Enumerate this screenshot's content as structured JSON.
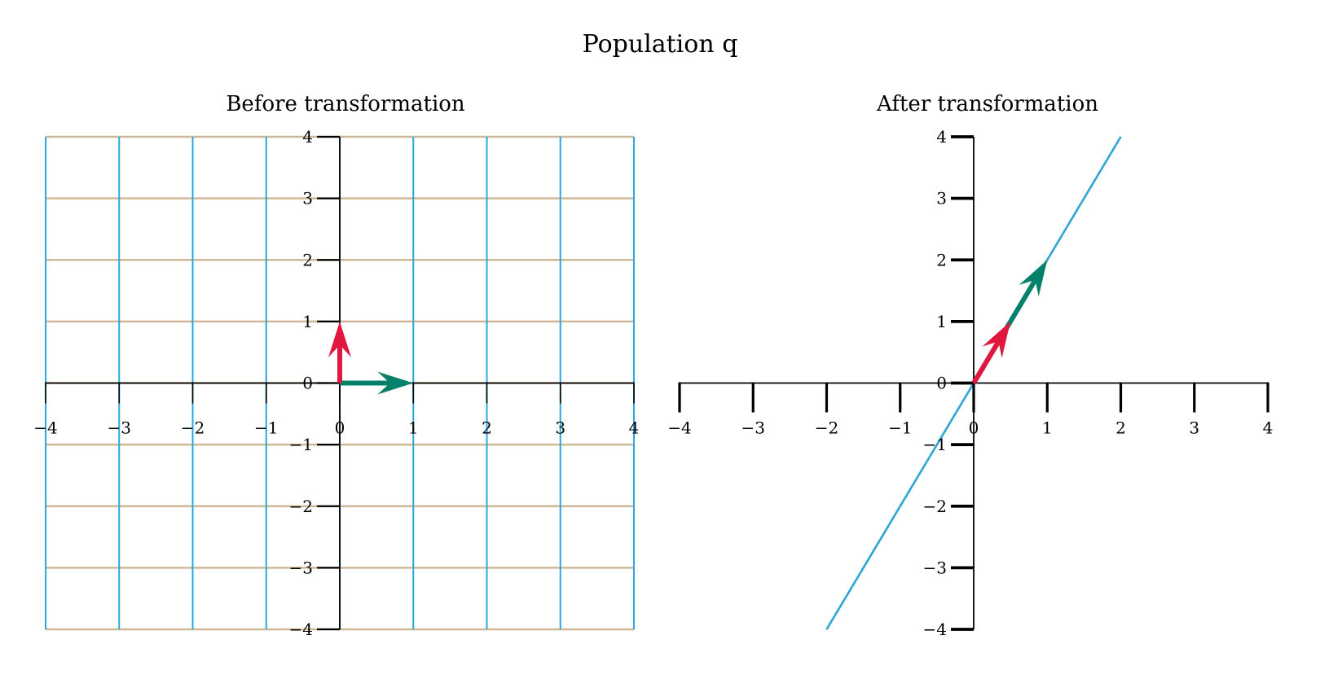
{
  "chart_data": {
    "title": "Population q",
    "type": "line",
    "colors": {
      "vertical_grid": "#29a8e0",
      "horizontal_grid": "#cfb897",
      "basis_i": "#05806a",
      "basis_j": "#e0173e",
      "axis": "#000000"
    },
    "panels": [
      {
        "title": "Before transformation",
        "xlim": [
          -4,
          4
        ],
        "ylim": [
          -4,
          4
        ],
        "xticks": [
          "−4",
          "−3",
          "−2",
          "−1",
          "0",
          "1",
          "2",
          "3",
          "4"
        ],
        "yticks": [
          "−4",
          "−3",
          "−2",
          "−1",
          "0",
          "1",
          "2",
          "3",
          "4"
        ],
        "matrix": [
          [
            1,
            0
          ],
          [
            0,
            1
          ]
        ],
        "vectors": [
          {
            "name": "i-hat",
            "x": 1,
            "y": 0
          },
          {
            "name": "j-hat",
            "x": 0,
            "y": 1
          }
        ]
      },
      {
        "title": "After transformation",
        "xlim": [
          -4,
          4
        ],
        "ylim": [
          -4,
          4
        ],
        "xticks": [
          "−4",
          "−3",
          "−2",
          "−1",
          "0",
          "1",
          "2",
          "3",
          "4"
        ],
        "yticks": [
          "−4",
          "−3",
          "−2",
          "−1",
          "0",
          "1",
          "2",
          "3",
          "4"
        ],
        "matrix": [
          [
            1,
            0.5
          ],
          [
            2,
            1
          ]
        ],
        "vectors": [
          {
            "name": "i-hat",
            "x": 1,
            "y": 2
          },
          {
            "name": "j-hat",
            "x": 0.5,
            "y": 1
          }
        ]
      }
    ]
  }
}
